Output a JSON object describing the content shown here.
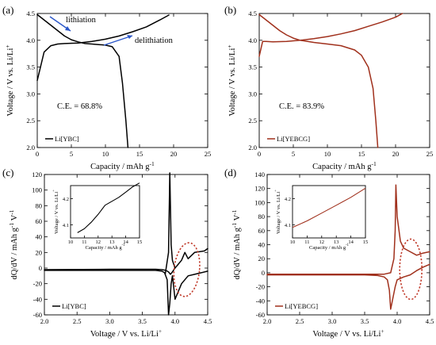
{
  "colors": {
    "black_series": "#000000",
    "brown_series": "#a0301c",
    "arrow_blue": "#2a56c8",
    "ellipse_red": "#c03a2a"
  },
  "chart_data": [
    {
      "panel": "(a)",
      "type": "line",
      "xlabel": "Capacity / mAh g-1",
      "ylabel": "Voltage / V vs. Li/Li+",
      "xlim": [
        0,
        25
      ],
      "ylim": [
        2.0,
        4.5
      ],
      "xticks": [
        "0",
        "5",
        "10",
        "15",
        "20",
        "25"
      ],
      "yticks": [
        "2.0",
        "2.5",
        "3.0",
        "3.5",
        "4.0",
        "4.5"
      ],
      "annotations": [
        "lithiation",
        "delithiation",
        "C.E. = 68.8%"
      ],
      "legend": "Li[YBC]",
      "series": [
        {
          "color": "#000000",
          "x": [
            0,
            1,
            2,
            3,
            4,
            6,
            8,
            10,
            12,
            14,
            16,
            18,
            19.3
          ],
          "y": [
            3.25,
            3.78,
            3.9,
            3.93,
            3.94,
            3.95,
            3.98,
            4.02,
            4.08,
            4.16,
            4.25,
            4.38,
            4.47
          ]
        },
        {
          "color": "#000000",
          "x": [
            0,
            1,
            2,
            3,
            4,
            5,
            6,
            7,
            8,
            9,
            10,
            11,
            12,
            12.5,
            13.0,
            13.3
          ],
          "y": [
            4.48,
            4.38,
            4.28,
            4.18,
            4.08,
            4.01,
            3.97,
            3.94,
            3.93,
            3.92,
            3.91,
            3.88,
            3.7,
            3.2,
            2.5,
            2.0
          ]
        }
      ]
    },
    {
      "panel": "(b)",
      "type": "line",
      "xlabel": "Capacity / mAh g-1",
      "ylabel": "Voltage / V vs. Li/Li+",
      "xlim": [
        0,
        25
      ],
      "ylim": [
        2.0,
        4.5
      ],
      "xticks": [
        "0",
        "5",
        "10",
        "15",
        "20",
        "25"
      ],
      "yticks": [
        "2.0",
        "2.5",
        "3.0",
        "3.5",
        "4.0",
        "4.5"
      ],
      "annotations": [
        "C.E. = 83.9%"
      ],
      "legend": "Li[YEBCG]",
      "series": [
        {
          "color": "#a0301c",
          "x": [
            0,
            0.5,
            1,
            2,
            4,
            6,
            8,
            10,
            12,
            14,
            16,
            18,
            20,
            21
          ],
          "y": [
            3.7,
            3.98,
            3.98,
            3.97,
            3.98,
            4.0,
            4.03,
            4.07,
            4.12,
            4.18,
            4.26,
            4.34,
            4.43,
            4.5
          ]
        },
        {
          "color": "#a0301c",
          "x": [
            0,
            1,
            2,
            3,
            4,
            5,
            6,
            8,
            10,
            12,
            14,
            15,
            16,
            16.7,
            17.1,
            17.4
          ],
          "y": [
            4.48,
            4.38,
            4.28,
            4.18,
            4.1,
            4.04,
            4.0,
            3.96,
            3.93,
            3.9,
            3.82,
            3.72,
            3.5,
            3.1,
            2.5,
            2.0
          ]
        }
      ]
    },
    {
      "panel": "(c)",
      "type": "line",
      "xlabel": "Voltage / V vs. Li/Li+",
      "ylabel": "dQ/dV / mAh g-1 V-1",
      "xlim": [
        2.0,
        4.5
      ],
      "ylim": [
        -60,
        120
      ],
      "xticks": [
        "2.0",
        "2.5",
        "3.0",
        "3.5",
        "4.0",
        "4.5"
      ],
      "yticks": [
        "-60",
        "-40",
        "-20",
        "0",
        "20",
        "40",
        "60",
        "80",
        "100",
        "120"
      ],
      "legend": "Li[YBC]",
      "series": [
        {
          "color": "#000000",
          "x": [
            2.0,
            3.0,
            3.5,
            3.7,
            3.8,
            3.86,
            3.9,
            3.93,
            3.95,
            4.0,
            4.05,
            4.1,
            4.15,
            4.2,
            4.3,
            4.45,
            4.5
          ],
          "y": [
            -2,
            -1.5,
            -1.5,
            -1.5,
            -2,
            -3,
            -5,
            -8,
            -6,
            0,
            5,
            10,
            20,
            12,
            20,
            22,
            25
          ]
        },
        {
          "color": "#000000",
          "x": [
            2.0,
            3.0,
            3.5,
            3.7,
            3.8,
            3.84,
            3.88,
            3.9,
            3.92,
            3.94,
            3.96,
            3.98,
            4.0,
            4.1,
            4.2,
            4.3,
            4.4,
            4.5
          ],
          "y": [
            -3,
            -3,
            -3,
            -3,
            -4,
            -6,
            -15,
            -60,
            -45,
            -20,
            -10,
            -25,
            -40,
            -20,
            -10,
            -8,
            -6,
            -4
          ]
        },
        {
          "color": "#000000",
          "x": [
            3.85,
            3.9,
            3.92,
            3.94,
            3.96,
            4.0
          ],
          "y": [
            -8,
            20,
            122,
            30,
            10,
            0
          ]
        }
      ],
      "inset": {
        "xlabel": "Capacity / mAh g-1",
        "ylabel": "Voltage / V vs. Li/Li+",
        "xlim": [
          10,
          15
        ],
        "ylim": [
          4.05,
          4.25
        ],
        "xticks": [
          "10",
          "11",
          "12",
          "13",
          "14",
          "15"
        ],
        "yticks": [
          "4.1",
          "4.2"
        ],
        "x": [
          10.5,
          11.0,
          11.5,
          12.0,
          12.5,
          13.0,
          13.5,
          14.0,
          14.5,
          15.0
        ],
        "y": [
          4.07,
          4.085,
          4.11,
          4.14,
          4.175,
          4.19,
          4.205,
          4.225,
          4.245,
          4.26
        ]
      }
    },
    {
      "panel": "(d)",
      "type": "line",
      "xlabel": "Voltage / V vs. Li/Li+",
      "ylabel": "dQ/dV / mAh g-1 V-1",
      "xlim": [
        2.0,
        4.5
      ],
      "ylim": [
        -60,
        140
      ],
      "xticks": [
        "2.0",
        "2.5",
        "3.0",
        "3.5",
        "4.0",
        "4.5"
      ],
      "yticks": [
        "-60",
        "-40",
        "-20",
        "0",
        "20",
        "40",
        "60",
        "80",
        "100",
        "120",
        "140"
      ],
      "legend": "Li[YEBCG]",
      "series": [
        {
          "color": "#a0301c",
          "x": [
            2.0,
            3.0,
            3.5,
            3.8,
            3.9,
            3.95,
            3.97,
            3.98,
            4.0,
            4.05,
            4.1,
            4.2,
            4.3,
            4.4,
            4.5
          ],
          "y": [
            -2,
            -2,
            -2,
            -2,
            0,
            20,
            60,
            125,
            80,
            45,
            35,
            30,
            25,
            28,
            30
          ]
        },
        {
          "color": "#a0301c",
          "x": [
            2.0,
            3.0,
            3.5,
            3.7,
            3.8,
            3.85,
            3.88,
            3.9,
            3.93,
            3.97,
            4.0,
            4.1,
            4.2,
            4.3,
            4.4,
            4.5
          ],
          "y": [
            -3,
            -3,
            -3,
            -4,
            -6,
            -10,
            -25,
            -52,
            -38,
            -20,
            -10,
            -6,
            -3,
            3,
            8,
            12
          ]
        }
      ],
      "inset": {
        "xlabel": "Capacity / mAh g-1",
        "ylabel": "Voltage / V vs. Li/Li+",
        "xlim": [
          10,
          15
        ],
        "ylim": [
          4.05,
          4.25
        ],
        "xticks": [
          "10",
          "11",
          "12",
          "13",
          "14",
          "15"
        ],
        "yticks": [
          "4.1",
          "4.2"
        ],
        "x": [
          10.0,
          11.0,
          12.0,
          13.0,
          14.0,
          15.0
        ],
        "y": [
          4.09,
          4.115,
          4.145,
          4.175,
          4.205,
          4.24
        ]
      }
    }
  ]
}
